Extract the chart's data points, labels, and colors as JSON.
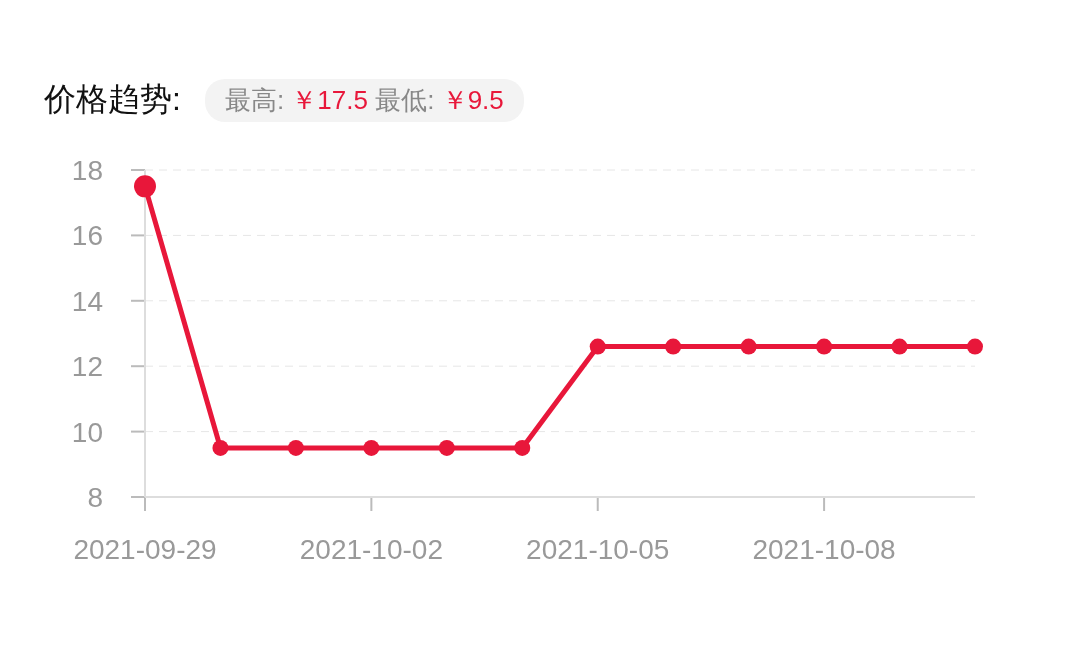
{
  "chart_data": {
    "type": "line",
    "title": "价格趋势:",
    "subtitle": "最高: ￥17.5 最低: ￥9.5",
    "x": [
      "2021-09-29",
      "2021-09-30",
      "2021-10-01",
      "2021-10-02",
      "2021-10-03",
      "2021-10-04",
      "2021-10-05",
      "2021-10-06",
      "2021-10-07",
      "2021-10-08",
      "2021-10-09",
      "2021-10-10"
    ],
    "series": [
      {
        "color": "#e8173a",
        "values": [
          17.5,
          9.5,
          9.5,
          9.5,
          9.5,
          9.5,
          12.6,
          12.6,
          12.6,
          12.6,
          12.6,
          12.6
        ]
      }
    ],
    "xlim": [
      "2021-09-29",
      "2021-10-10"
    ],
    "xticks": [
      "2021-09-29",
      "2021-10-02",
      "2021-10-05",
      "2021-10-08"
    ],
    "ylim": [
      8,
      18
    ],
    "yticks": [
      8,
      10,
      12,
      14,
      16,
      18
    ],
    "grid": "y",
    "marker": "circle",
    "line_style": "solid"
  }
}
